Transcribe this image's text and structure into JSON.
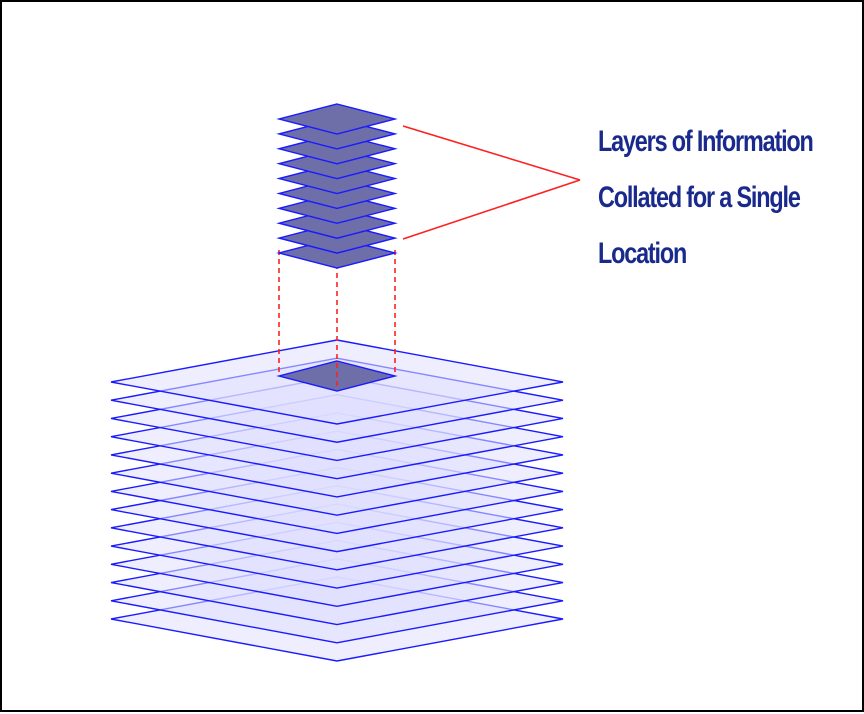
{
  "caption": {
    "lines": [
      "Layers of Information",
      "Collated for a Single",
      "Location"
    ]
  },
  "colors": {
    "layer_stroke": "#1a1aff",
    "layer_fill": "#e0e0ff",
    "small_layer_fill": "#6e6ea8",
    "small_layer_stroke": "#1a1aff",
    "connector": "#ff2020",
    "caption_text": "#1a2a8c",
    "frame": "#000000"
  },
  "icons": {
    "large_stack": "stacked-map-layers",
    "small_stack": "collated-location-layers",
    "highlight": "selected-location-cell"
  },
  "layer_counts": {
    "large_stack": 14,
    "small_stack": 10
  }
}
